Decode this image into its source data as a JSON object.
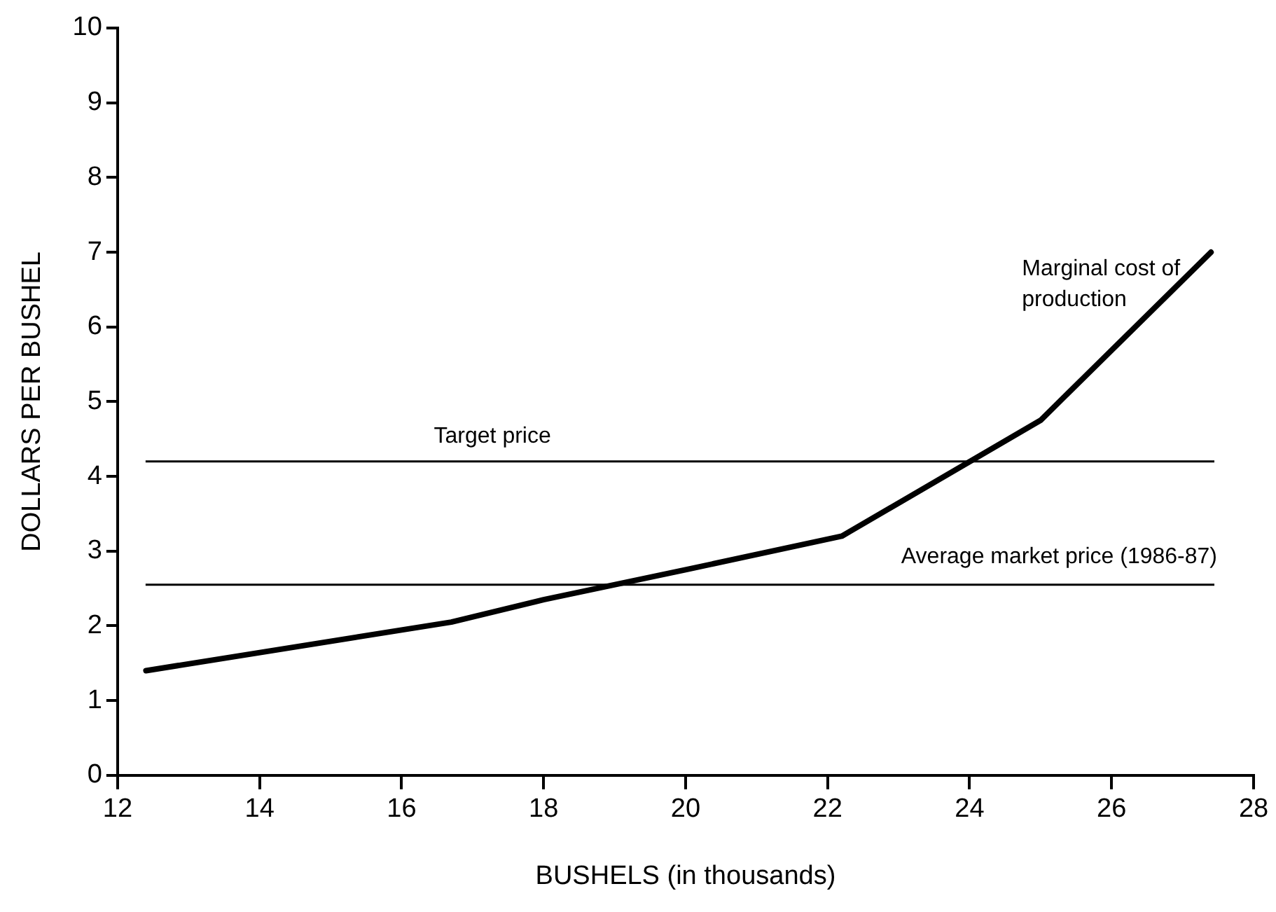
{
  "chart_data": {
    "type": "line",
    "xlabel": "BUSHELS (in thousands)",
    "ylabel": "DOLLARS PER BUSHEL",
    "x": [
      12.4,
      16.7,
      18,
      20,
      22.2,
      25,
      27.4
    ],
    "series": [
      {
        "name": "Marginal cost of production",
        "color": "#000000",
        "values": [
          1.4,
          2.05,
          2.35,
          2.75,
          3.2,
          4.75,
          7.0
        ]
      }
    ],
    "xlim": [
      12,
      28
    ],
    "xticks": [
      12,
      14,
      16,
      18,
      20,
      22,
      24,
      26,
      28
    ],
    "ylim": [
      0,
      10
    ],
    "yticks": [
      0,
      1,
      2,
      3,
      4,
      5,
      6,
      7,
      8,
      9,
      10
    ],
    "ref_lines": [
      {
        "axis": "y",
        "value": 4.2,
        "label": "Target price",
        "color": "#000000"
      },
      {
        "axis": "y",
        "value": 2.55,
        "label": "Average market price (1986-87)",
        "color": "#000000"
      }
    ],
    "grid": false,
    "legend": false,
    "marker": "none",
    "line_style": "solid"
  }
}
